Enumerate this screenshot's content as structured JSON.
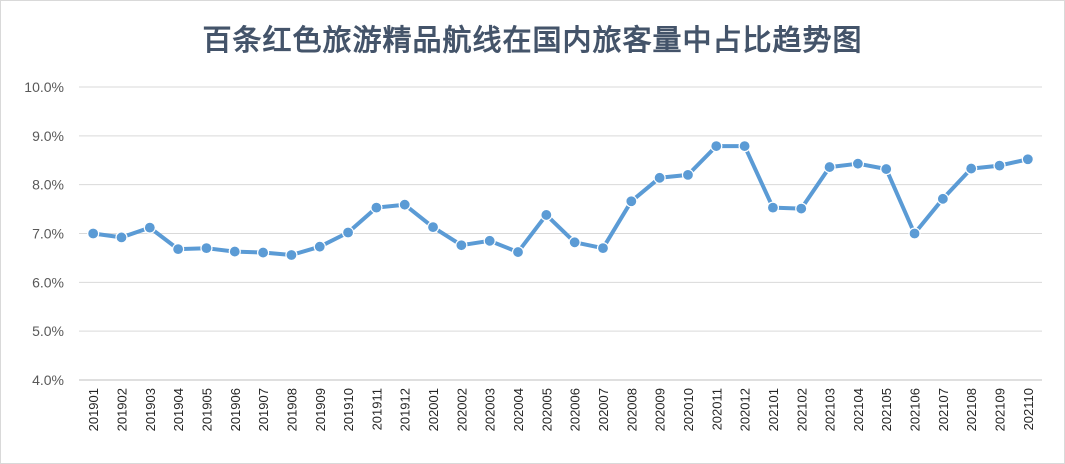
{
  "chart_data": {
    "type": "line",
    "title": "百条红色旅游精品航线在国内旅客量中占比趋势图",
    "xlabel": "",
    "ylabel": "",
    "ylim": [
      0.04,
      0.1
    ],
    "yticks": [
      "4.0%",
      "5.0%",
      "6.0%",
      "7.0%",
      "8.0%",
      "9.0%",
      "10.0%"
    ],
    "grid": true,
    "legend": "none",
    "line_color": "#5b9bd5",
    "categories": [
      "201901",
      "201902",
      "201903",
      "201904",
      "201905",
      "201906",
      "201907",
      "201908",
      "201909",
      "201910",
      "201911",
      "201912",
      "202001",
      "202002",
      "202003",
      "202004",
      "202005",
      "202006",
      "202007",
      "202008",
      "202009",
      "202010",
      "202011",
      "202012",
      "202101",
      "202102",
      "202103",
      "202104",
      "202105",
      "202106",
      "202107",
      "202108",
      "202109",
      "202110"
    ],
    "series": [
      {
        "values": [
          0.07,
          0.0692,
          0.0712,
          0.0668,
          0.067,
          0.0663,
          0.0661,
          0.0656,
          0.0673,
          0.0702,
          0.0753,
          0.0759,
          0.0713,
          0.0676,
          0.0685,
          0.0662,
          0.0738,
          0.0682,
          0.067,
          0.0766,
          0.0814,
          0.082,
          0.0879,
          0.0879,
          0.0753,
          0.0751,
          0.0836,
          0.0843,
          0.0832,
          0.07,
          0.0771,
          0.0833,
          0.0839,
          0.0852
        ]
      }
    ]
  }
}
